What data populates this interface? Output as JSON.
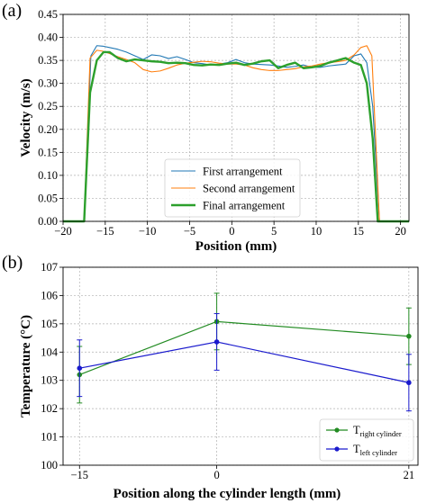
{
  "chart_data": [
    {
      "type": "line",
      "panel_label": "(a)",
      "title": "",
      "xlabel": "Position (mm)",
      "ylabel": "Velocity (m/s)",
      "xlim": [
        -20,
        21
      ],
      "ylim": [
        0,
        0.45
      ],
      "xticks": [
        -20,
        -15,
        -10,
        -5,
        0,
        5,
        10,
        15,
        20
      ],
      "yticks": [
        0.0,
        0.05,
        0.1,
        0.15,
        0.2,
        0.25,
        0.3,
        0.35,
        0.4,
        0.45
      ],
      "xtick_labels": [
        "−20",
        "−15",
        "−10",
        "−5",
        "0",
        "5",
        "10",
        "15",
        "20"
      ],
      "ytick_labels": [
        "0.00",
        "0.05",
        "0.10",
        "0.15",
        "0.20",
        "0.25",
        "0.30",
        "0.35",
        "0.40",
        "0.45"
      ],
      "grid": true,
      "legend_position": "bottom-center",
      "series": [
        {
          "name": "First arrangement",
          "color": "#1f77b4",
          "x": [
            -20,
            -17.5,
            -16.7,
            -16.0,
            -15.3,
            -14.5,
            -13.5,
            -12.5,
            -11.5,
            -10.5,
            -9.5,
            -8.5,
            -7.5,
            -6.5,
            -5.5,
            -4.5,
            -3.5,
            -2.5,
            -1.5,
            -0.5,
            0.5,
            1.5,
            2.5,
            3.5,
            4.5,
            5.5,
            6.5,
            7.5,
            8.5,
            9.5,
            10.5,
            11.5,
            12.5,
            13.5,
            14.5,
            15.3,
            16.0,
            16.7,
            17.5,
            21
          ],
          "y": [
            0.0,
            0.0,
            0.36,
            0.382,
            0.381,
            0.378,
            0.374,
            0.368,
            0.36,
            0.352,
            0.362,
            0.36,
            0.354,
            0.358,
            0.352,
            0.345,
            0.343,
            0.34,
            0.342,
            0.345,
            0.352,
            0.345,
            0.342,
            0.341,
            0.34,
            0.338,
            0.335,
            0.337,
            0.34,
            0.335,
            0.335,
            0.338,
            0.34,
            0.342,
            0.36,
            0.364,
            0.345,
            0.25,
            0.0,
            0.0
          ]
        },
        {
          "name": "Second arrangement",
          "color": "#ff7f0e",
          "x": [
            -20,
            -17.5,
            -16.8,
            -16.0,
            -15.3,
            -14.5,
            -13.5,
            -12.5,
            -11.5,
            -10.5,
            -9.5,
            -8.5,
            -7.5,
            -6.5,
            -5.5,
            -4.5,
            -3.5,
            -2.5,
            -1.5,
            -0.5,
            0.5,
            1.5,
            2.5,
            3.5,
            4.5,
            5.5,
            6.5,
            7.5,
            8.5,
            9.5,
            10.5,
            11.5,
            12.5,
            13.5,
            14.5,
            15.3,
            16.0,
            16.6,
            17.5,
            21
          ],
          "y": [
            0.0,
            0.0,
            0.355,
            0.372,
            0.37,
            0.365,
            0.358,
            0.352,
            0.345,
            0.33,
            0.325,
            0.327,
            0.333,
            0.34,
            0.344,
            0.346,
            0.348,
            0.347,
            0.344,
            0.342,
            0.342,
            0.34,
            0.334,
            0.33,
            0.328,
            0.328,
            0.33,
            0.332,
            0.336,
            0.338,
            0.342,
            0.345,
            0.347,
            0.35,
            0.362,
            0.378,
            0.382,
            0.36,
            0.0,
            0.0
          ]
        },
        {
          "name": "Final arrangement",
          "color": "#2ca02c",
          "x": [
            -20,
            -17.5,
            -16.8,
            -16.0,
            -15.2,
            -14.5,
            -13.5,
            -12.5,
            -11.5,
            -10.5,
            -9.5,
            -8.5,
            -7.5,
            -6.5,
            -5.5,
            -4.5,
            -3.5,
            -2.5,
            -1.5,
            -0.5,
            0.5,
            1.5,
            2.5,
            3.5,
            4.5,
            5.5,
            6.5,
            7.5,
            8.5,
            9.5,
            10.5,
            11.5,
            12.5,
            13.5,
            14.5,
            15.3,
            16.0,
            16.7,
            17.3,
            21
          ],
          "y": [
            0.0,
            0.0,
            0.28,
            0.35,
            0.368,
            0.368,
            0.355,
            0.348,
            0.352,
            0.35,
            0.348,
            0.347,
            0.344,
            0.345,
            0.344,
            0.34,
            0.339,
            0.341,
            0.34,
            0.343,
            0.345,
            0.34,
            0.343,
            0.348,
            0.35,
            0.333,
            0.34,
            0.345,
            0.333,
            0.335,
            0.338,
            0.345,
            0.35,
            0.355,
            0.345,
            0.34,
            0.3,
            0.18,
            0.0,
            0.0
          ]
        }
      ]
    },
    {
      "type": "line",
      "panel_label": "(b)",
      "title": "",
      "xlabel": "Position along the cylinder length (mm)",
      "ylabel": "Temperature (°C)",
      "xlim": [
        -16.8,
        22.0
      ],
      "ylim": [
        100,
        107
      ],
      "xticks": [
        -15,
        0,
        21
      ],
      "yticks": [
        100,
        101,
        102,
        103,
        104,
        105,
        106,
        107
      ],
      "xtick_labels": [
        "−15",
        "0",
        "21"
      ],
      "ytick_labels": [
        "100",
        "101",
        "102",
        "103",
        "104",
        "105",
        "106",
        "107"
      ],
      "grid": true,
      "legend_position": "bottom-right",
      "series": [
        {
          "name_main": "T",
          "name_sub": "right cylinder",
          "color": "#228b22",
          "x": [
            -15,
            0,
            21
          ],
          "y": [
            103.2,
            105.08,
            104.56
          ],
          "err": [
            1.0,
            1.0,
            1.0
          ]
        },
        {
          "name_main": "T",
          "name_sub": "left cylinder",
          "color": "#1a1acd",
          "x": [
            -15,
            0,
            21
          ],
          "y": [
            103.43,
            104.36,
            102.92
          ],
          "err": [
            1.0,
            1.0,
            1.0
          ]
        }
      ]
    }
  ]
}
